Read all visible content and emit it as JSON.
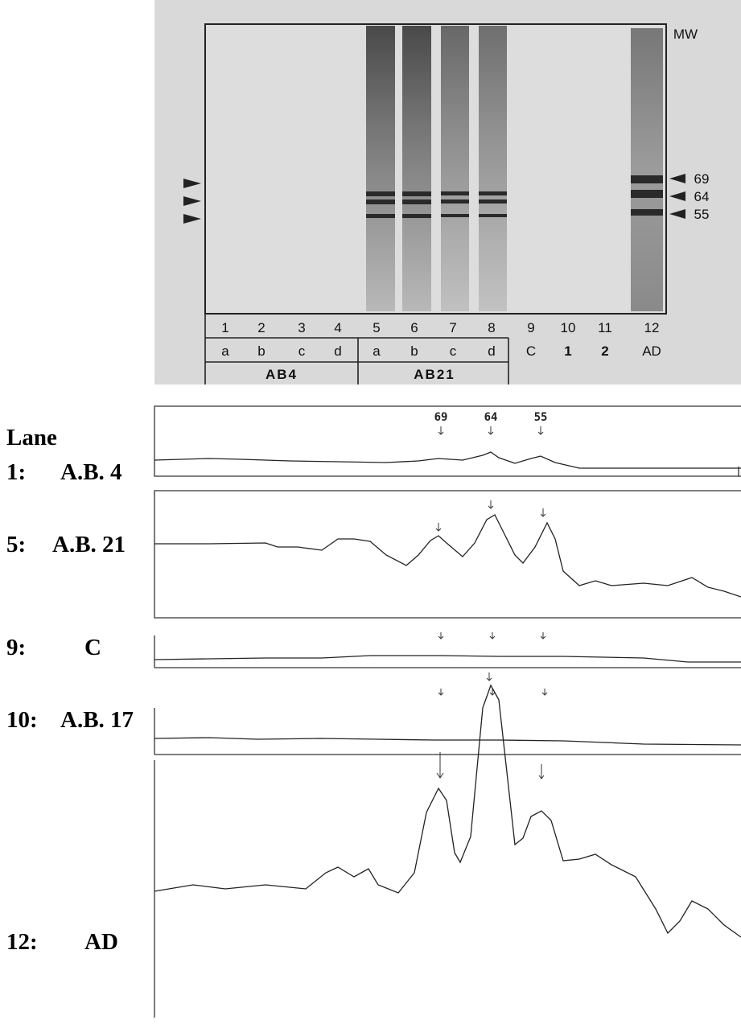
{
  "gel": {
    "mw_label": "MW",
    "markers": [
      "69",
      "64",
      "55"
    ],
    "lane_numbers": [
      "1",
      "2",
      "3",
      "4",
      "5",
      "6",
      "7",
      "8",
      "9",
      "10",
      "11",
      "12"
    ],
    "lane_codes": [
      "a",
      "b",
      "c",
      "d",
      "a",
      "b",
      "c",
      "d",
      "C",
      "1",
      "2",
      "AD"
    ],
    "groups": [
      "AB4",
      "AB21"
    ]
  },
  "traces": {
    "heading": "Lane",
    "peak_labels": [
      "69",
      "64",
      "55"
    ],
    "lanes": [
      {
        "lane": "1:",
        "name": "A.B. 4"
      },
      {
        "lane": "5:",
        "name": "A.B. 21"
      },
      {
        "lane": "9:",
        "name": "C"
      },
      {
        "lane": "10:",
        "name": "A.B. 17"
      },
      {
        "lane": "12:",
        "name": "AD"
      }
    ]
  }
}
